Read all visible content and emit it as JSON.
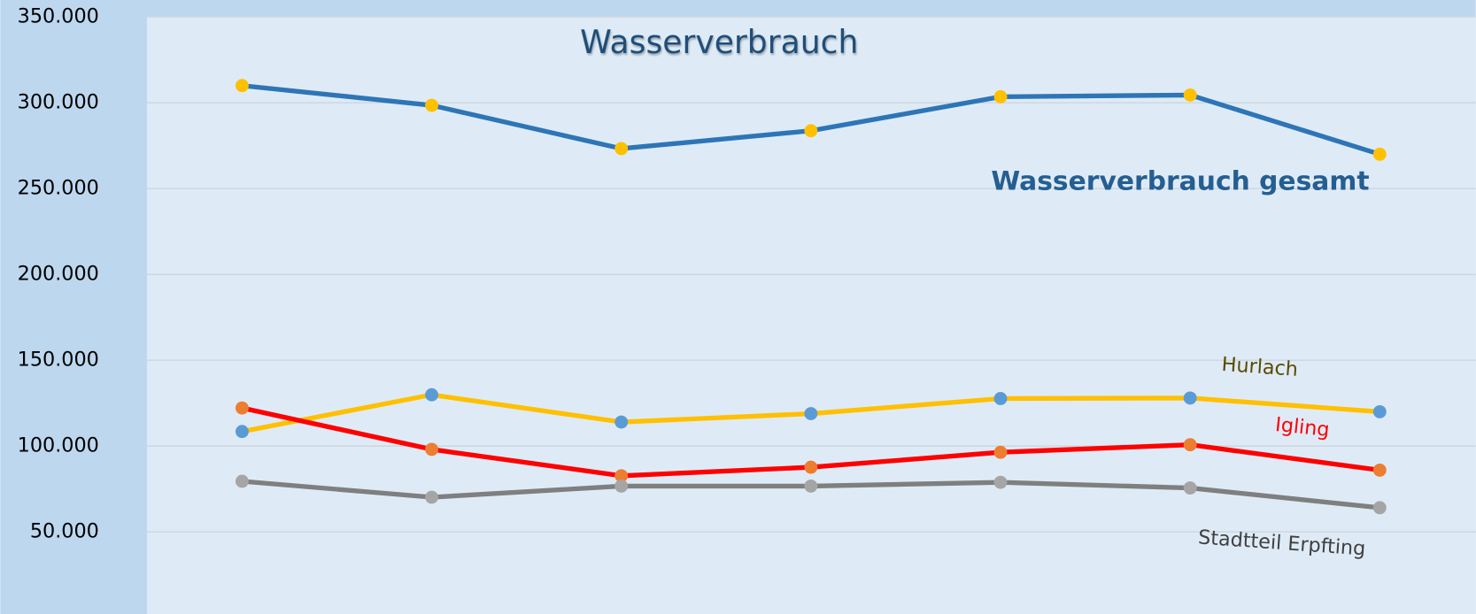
{
  "chart_data": {
    "type": "line",
    "title": "Wasserverbrauch",
    "categories": [
      null,
      null,
      null,
      null,
      null,
      null,
      null
    ],
    "ylim": [
      0,
      350000
    ],
    "yticks": [
      {
        "value": 50000,
        "label": "50.000"
      },
      {
        "value": 100000,
        "label": "100.000"
      },
      {
        "value": 150000,
        "label": "150.000"
      },
      {
        "value": 200000,
        "label": "200.000"
      },
      {
        "value": 250000,
        "label": "250.000"
      },
      {
        "value": 300000,
        "label": "300.000"
      },
      {
        "value": 350000,
        "label": "350.000"
      }
    ],
    "grid": true,
    "series": [
      {
        "name": "Wasserverbrauch gesamt",
        "color": "#2e75b6",
        "marker_color": "#ffc000",
        "label_color": "#255e91",
        "values": [
          310000,
          298500,
          273300,
          283700,
          303500,
          304500,
          270000
        ]
      },
      {
        "name": "Hurlach",
        "color": "#ffc000",
        "marker_color": "#5b9bd5",
        "label_color": "#5a4a00",
        "values": [
          108500,
          129900,
          114000,
          118900,
          127700,
          128000,
          120000
        ]
      },
      {
        "name": "Igling",
        "color": "#ff0000",
        "marker_color": "#ed7d31",
        "label_color": "#ff0000",
        "values": [
          122200,
          98100,
          82700,
          87700,
          96400,
          100800,
          86000
        ]
      },
      {
        "name": "Stadtteil Erpfting",
        "color": "#7f7f7f",
        "marker_color": "#a5a5a5",
        "label_color": "#404040",
        "values": [
          79500,
          70200,
          76700,
          76700,
          78900,
          75600,
          64100
        ]
      }
    ]
  }
}
